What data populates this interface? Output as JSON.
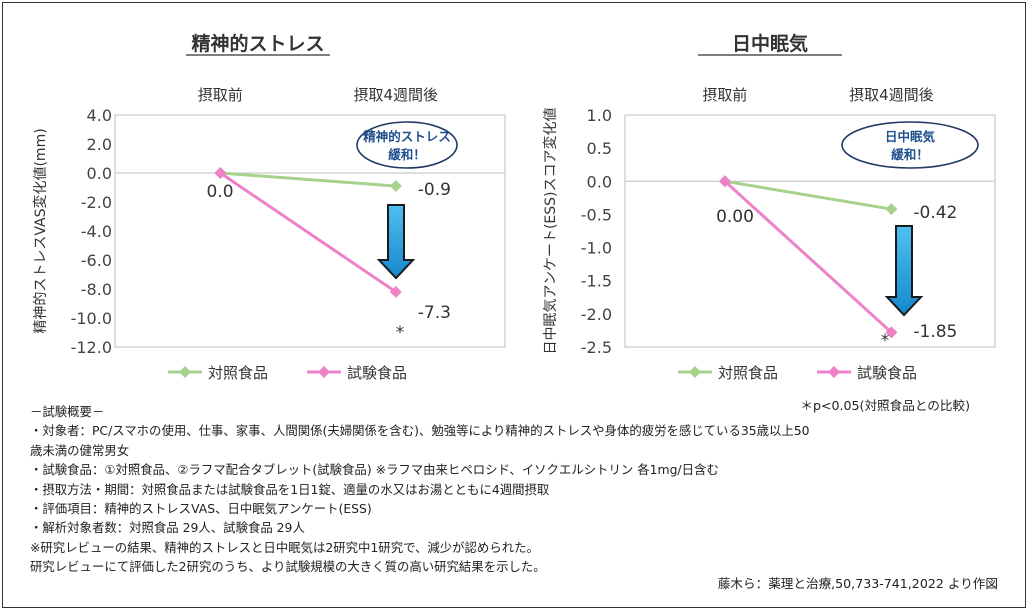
{
  "chart_data": [
    {
      "type": "line",
      "title": "精神的ストレス",
      "ylabel": "精神的ストレスVAS変化値(mm)",
      "categories": [
        "摂取前",
        "摂取4週間後"
      ],
      "ylim": [
        -12,
        4
      ],
      "yticks": [
        "4.0",
        "2.0",
        "0.0",
        "-2.0",
        "-4.0",
        "-6.0",
        "-8.0",
        "-10.0",
        "-12.0"
      ],
      "series": [
        {
          "name": "対照食品",
          "values": [
            0.0,
            -0.9
          ],
          "labels": [
            "",
            "-0.9"
          ]
        },
        {
          "name": "試験食品",
          "values": [
            0.0,
            -8.2
          ],
          "labels": [
            "",
            "-7.3"
          ]
        }
      ],
      "start_label": "0.0",
      "significance": "*",
      "badge": [
        "精神的ストレス",
        "緩和！"
      ]
    },
    {
      "type": "line",
      "title": "日中眠気",
      "ylabel": "日中眠気アンケート(ESS)スコア変化値",
      "categories": [
        "摂取前",
        "摂取4週間後"
      ],
      "ylim": [
        -2.5,
        1.0
      ],
      "yticks": [
        "1.0",
        "0.5",
        "0.0",
        "-0.5",
        "-1.0",
        "-1.5",
        "-2.0",
        "-2.5"
      ],
      "series": [
        {
          "name": "対照食品",
          "values": [
            0.0,
            -0.42
          ],
          "labels": [
            "",
            "-0.42"
          ]
        },
        {
          "name": "試験食品",
          "values": [
            0.0,
            -2.28
          ],
          "labels": [
            "",
            "-1.85"
          ]
        }
      ],
      "start_label": "0.00",
      "significance": "*",
      "badge": [
        "日中眠気",
        "緩和！"
      ]
    }
  ],
  "colors": {
    "control": "#a9d18e",
    "test": "#ee82c8",
    "arrow": "#1aa0e0",
    "arrow_border": "#1a1a1a",
    "badge_border": "#1f3864",
    "badge_text": "#1f4e8c"
  },
  "legend": {
    "control": "対照食品",
    "test": "試験食品"
  },
  "significance_note": "＊p<0.05(対照食品との比較)",
  "notes": [
    "－試験概要－",
    "・対象者：PC/スマホの使用、仕事、家事、人間関係(夫婦関係を含む)、勉強等により精神的ストレスや身体的疲労を感じている35歳以上50",
    "歳未満の健常男女",
    "・試験食品：①対照食品、②ラフマ配合タブレット(試験食品) ※ラフマ由来ヒペロシド、イソクエルシトリン 各1mg/日含む",
    "・摂取方法・期間：対照食品または試験食品を1日1錠、適量の水又はお湯とともに4週間摂取",
    "・評価項目：精神的ストレスVAS、日中眠気アンケート(ESS)",
    "・解析対象者数：対照食品 29人、試験食品 29人",
    "※研究レビューの結果、精神的ストレスと日中眠気は2研究中1研究で、減少が認められた。",
    "研究レビューにて評価した2研究のうち、より試験規模の大きく質の高い研究結果を示した。"
  ],
  "citation": "藤木ら：薬理と治療,50,733-741,2022 より作図"
}
